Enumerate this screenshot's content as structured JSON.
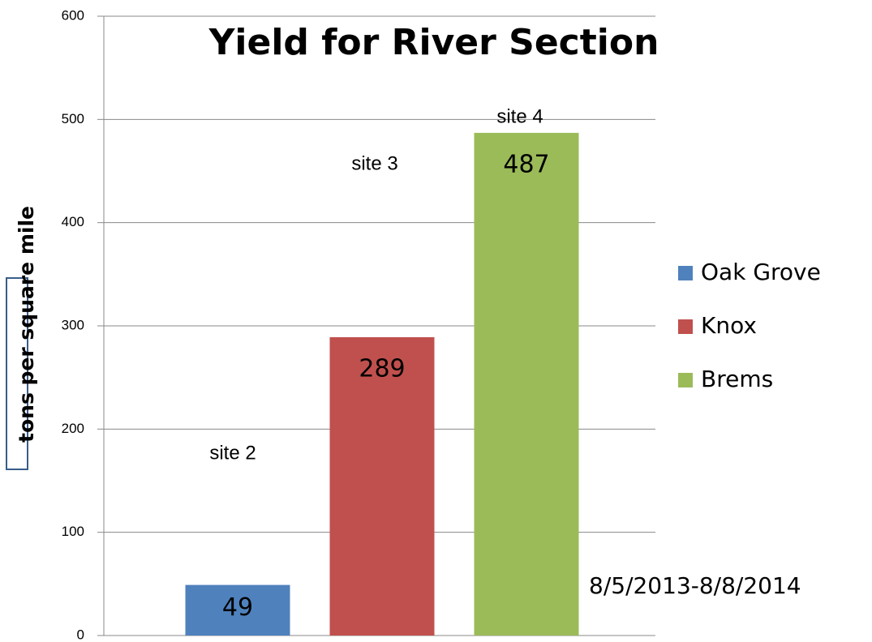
{
  "chart_data": {
    "type": "bar",
    "title": "Yield for River Section",
    "y_label": "tons per square mile",
    "categories": [
      null
    ],
    "series": [
      {
        "name": "Oak Grove",
        "color": "#4f81bd",
        "values": [
          49
        ]
      },
      {
        "name": "Knox",
        "color": "#c0504d",
        "values": [
          289
        ]
      },
      {
        "name": "Brems",
        "color": "#9bbb59",
        "values": [
          487
        ]
      }
    ],
    "ylim": [
      0,
      600
    ],
    "yticks": [
      0,
      100,
      200,
      300,
      400,
      500,
      600
    ],
    "grid": true,
    "legend": "right",
    "annotations": [
      "site 2",
      "site 3",
      "site 4",
      "8/5/2013-8/8/2014"
    ]
  }
}
